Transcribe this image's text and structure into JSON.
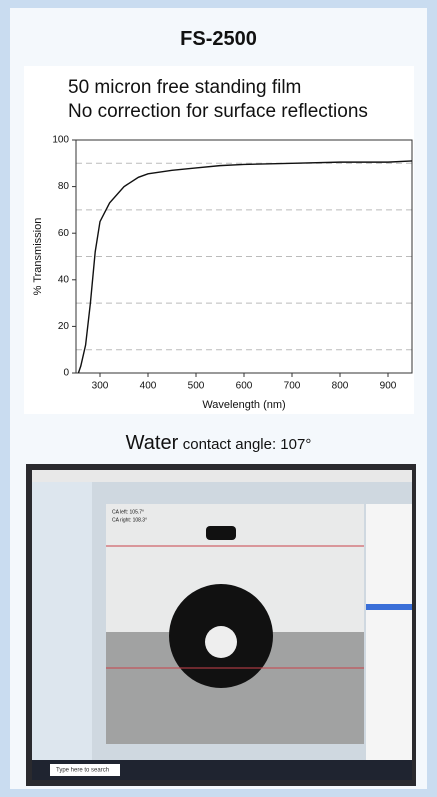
{
  "header": {
    "title": "FS-2500"
  },
  "chart_data": {
    "type": "line",
    "title": "50 micron free standing film",
    "subtitle": "No correction for surface reflections",
    "x_label": "Wavelength (nm)",
    "y_label": "% Transmission",
    "x": [
      255,
      260,
      270,
      280,
      290,
      300,
      320,
      350,
      380,
      400,
      450,
      500,
      550,
      600,
      700,
      800,
      900,
      950
    ],
    "values": [
      0,
      3,
      12,
      30,
      52,
      65,
      73,
      80,
      84,
      85.5,
      87,
      88,
      89,
      89.5,
      90,
      90.5,
      90.5,
      91
    ],
    "color": "#111111",
    "xlim": [
      250,
      950
    ],
    "ylim": [
      0,
      100
    ],
    "xticks": [
      300,
      400,
      500,
      600,
      700,
      800,
      900
    ],
    "yticks": [
      0,
      20,
      40,
      60,
      80,
      100
    ],
    "grid_lines": [
      10,
      30,
      50,
      70,
      90
    ]
  },
  "caption": {
    "main": "Water",
    "detail": "contact angle:  107°"
  },
  "photo": {
    "ca_left": "CA left: 105.7°",
    "ca_right": "CA right: 108.3°",
    "search": "Type here to search"
  }
}
